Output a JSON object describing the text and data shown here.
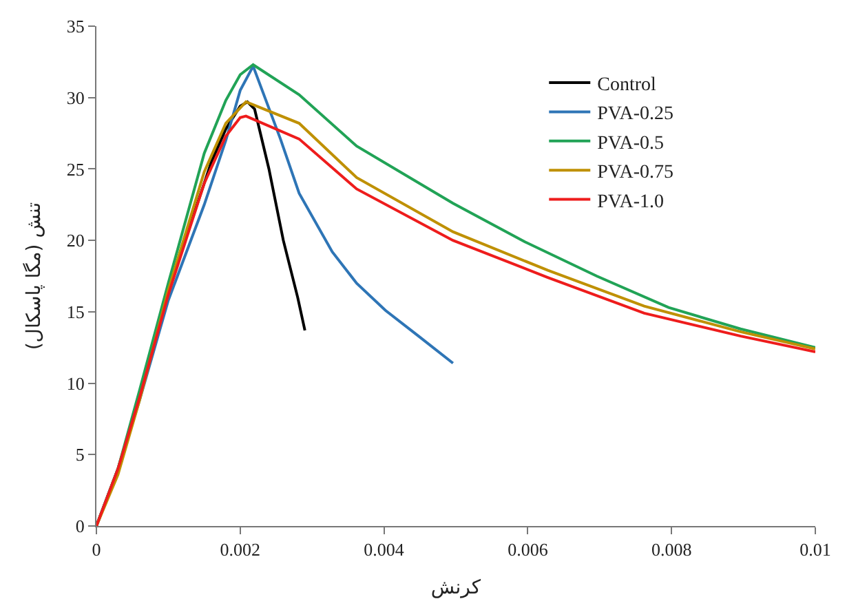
{
  "chart_data": {
    "type": "line",
    "xlabel": "کرنش",
    "ylabel": "تنش (مگا پاسکال)",
    "xlim": [
      0,
      0.01
    ],
    "xticks": [
      0,
      0.002,
      0.004,
      0.006,
      0.008,
      0.01
    ],
    "ylim": [
      0,
      35
    ],
    "yticks": [
      0,
      5,
      10,
      15,
      20,
      25,
      30,
      35
    ],
    "legend": "top right",
    "marker": "none",
    "line_style": "solid",
    "series": [
      {
        "name": "Control",
        "color": "#000000",
        "x": [
          0,
          0.0003,
          0.0006,
          0.001,
          0.0013,
          0.0016,
          0.0018,
          0.002,
          0.0021,
          0.0022,
          0.0024,
          0.0026,
          0.0028,
          0.0029
        ],
        "values": [
          0,
          4,
          9,
          16.5,
          21,
          25.5,
          27.8,
          29.4,
          29.7,
          29.2,
          25,
          20,
          16,
          13.7
        ]
      },
      {
        "name": "PVA-0.25",
        "color": "#2e75b6",
        "x": [
          0,
          0.0003,
          0.0006,
          0.001,
          0.0015,
          0.0018,
          0.002,
          0.00218,
          0.00256,
          0.00282,
          0.00328,
          0.00362,
          0.00402,
          0.00448,
          0.00496
        ],
        "values": [
          0,
          4,
          8.8,
          15.8,
          22.5,
          27,
          30.5,
          32.2,
          27.1,
          23.3,
          19.2,
          17,
          15.1,
          13.3,
          11.4
        ]
      },
      {
        "name": "PVA-0.5",
        "color": "#21a356",
        "x": [
          0,
          0.0003,
          0.0006,
          0.001,
          0.0015,
          0.0018,
          0.002,
          0.00218,
          0.00282,
          0.00362,
          0.00496,
          0.00596,
          0.00696,
          0.00796,
          0.00896,
          0.01
        ],
        "values": [
          0,
          4,
          9.5,
          17,
          26.1,
          29.8,
          31.6,
          32.3,
          30.2,
          26.6,
          22.6,
          19.9,
          17.5,
          15.3,
          13.8,
          12.5
        ]
      },
      {
        "name": "PVA-0.75",
        "color": "#bf9000",
        "x": [
          0,
          0.0003,
          0.0006,
          0.001,
          0.0015,
          0.0018,
          0.00208,
          0.00282,
          0.00362,
          0.00496,
          0.00628,
          0.00762,
          0.00896,
          0.01
        ],
        "values": [
          0,
          3.6,
          8.8,
          16.5,
          24.8,
          28.2,
          29.7,
          28.2,
          24.4,
          20.6,
          17.9,
          15.4,
          13.6,
          12.4
        ]
      },
      {
        "name": "PVA-1.0",
        "color": "#ee1c1c",
        "x": [
          0,
          0.0003,
          0.0006,
          0.001,
          0.0015,
          0.0018,
          0.002,
          0.00208,
          0.00282,
          0.00362,
          0.00496,
          0.00628,
          0.00762,
          0.00896,
          0.01
        ],
        "values": [
          0,
          4,
          9,
          16.2,
          24,
          27.3,
          28.6,
          28.7,
          27.1,
          23.6,
          20,
          17.4,
          14.9,
          13.3,
          12.2
        ]
      }
    ]
  }
}
